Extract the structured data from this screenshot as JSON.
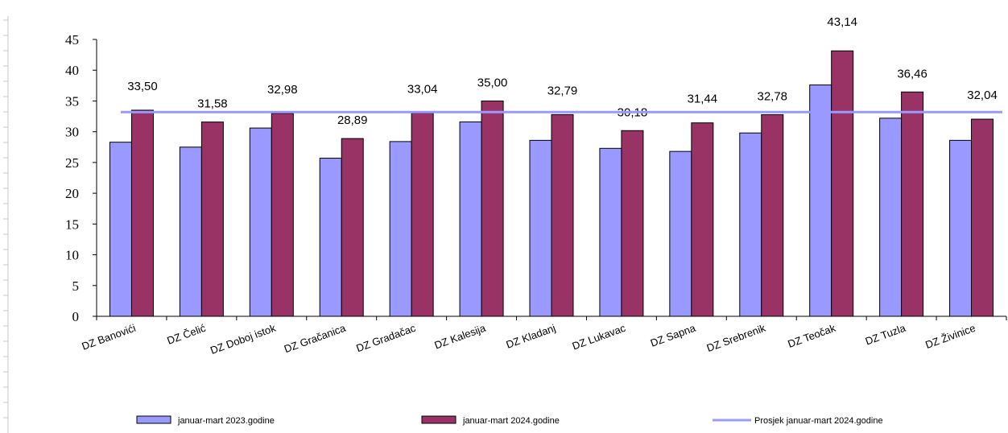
{
  "chart_data": {
    "type": "bar",
    "categories": [
      "DZ Banovići",
      "DZ Čelić",
      "DZ Doboj istok",
      "DZ Gračanica",
      "DZ Gradačac",
      "DZ Kalesija",
      "DZ Kladanj",
      "DZ Lukavac",
      "DZ Sapna",
      "DZ Srebrenik",
      "DZ Teočak",
      "DZ Tuzla",
      "DZ Živinice"
    ],
    "series": [
      {
        "name": "januar-mart 2023.godine",
        "color": "#9999ff",
        "values": [
          28.3,
          27.5,
          30.6,
          25.7,
          28.4,
          31.6,
          28.6,
          27.3,
          26.8,
          29.8,
          37.6,
          32.2,
          28.6
        ]
      },
      {
        "name": "januar-mart 2024.godine",
        "color": "#993366",
        "values": [
          33.5,
          31.58,
          32.98,
          28.89,
          33.04,
          35.0,
          32.79,
          30.18,
          31.44,
          32.78,
          43.14,
          36.46,
          32.04
        ],
        "labels": [
          "33,50",
          "31,58",
          "32,98",
          "28,89",
          "33,04",
          "35,00",
          "32,79",
          "30,18",
          "31,44",
          "32,78",
          "43,14",
          "36,46",
          "32,04"
        ]
      }
    ],
    "average_line": {
      "name": "Prosjek  januar-mart 2024.godine",
      "value": 33.2,
      "color": "#9999ff"
    },
    "ylim": [
      0,
      45
    ],
    "yticks": [
      0,
      5,
      10,
      15,
      20,
      25,
      30,
      35,
      40,
      45
    ],
    "grid": false,
    "legend_position": "bottom"
  }
}
